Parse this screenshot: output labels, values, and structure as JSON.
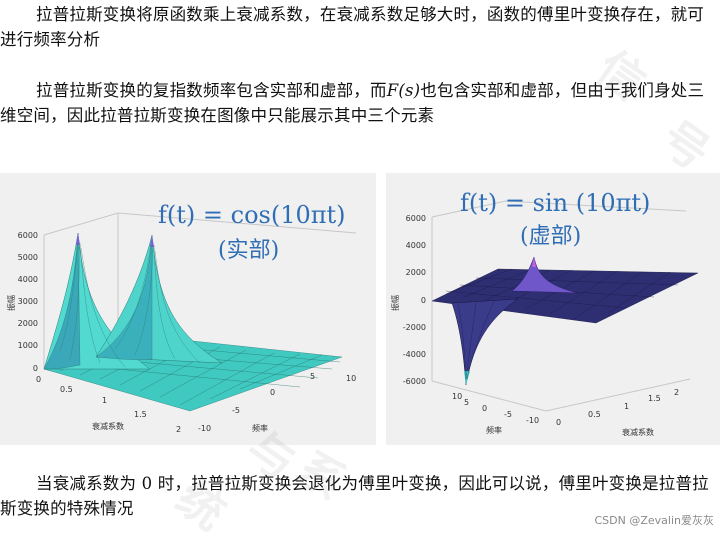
{
  "paragraphs": {
    "p1": "拉普拉斯变换将原函数乘上衰减系数，在衰减系数足够大时，函数的傅里叶变换存在，就可进行频率分析",
    "p2_before": "拉普拉斯变换的复指数频率包含实部和虚部，而",
    "p2_symbol": "F(s)",
    "p2_after": "也包含实部和虚部，但由于我们身处三维空间，因此拉普拉斯变换在图像中只能展示其中三个元素",
    "p3": "当衰减系数为 0 时，拉普拉斯变换会退化为傅里叶变换，因此可以说，傅里叶变换是拉普拉斯变换的特殊情况"
  },
  "watermarks": [
    "信",
    "号",
    "与",
    "系",
    "统"
  ],
  "footer": "CSDN @Zevalin爱灰灰",
  "chart_data": [
    {
      "type": "surface",
      "formula": "f(t) = cos(10πt)",
      "formula_sub": "(实部)",
      "zlabel": "振幅",
      "xlabel": "衰减系数",
      "ylabel": "频率",
      "z_ticks": [
        "0",
        "1000",
        "2000",
        "3000",
        "4000",
        "5000",
        "6000"
      ],
      "x_ticks": [
        "0",
        "0.5",
        "1",
        "1.5",
        "2"
      ],
      "y_ticks": [
        "-10",
        "-5",
        "0",
        "5",
        "10"
      ],
      "zlim": [
        0,
        6000
      ],
      "peaks": [
        {
          "frequency": -5,
          "amplitude": 5700
        },
        {
          "frequency": 5,
          "amplitude": 5700
        }
      ],
      "color": "#3fd6cc"
    },
    {
      "type": "surface",
      "formula": "f(t) = sin (10πt)",
      "formula_sub": "(虚部)",
      "zlabel": "振幅",
      "xlabel": "衰减系数",
      "ylabel": "频率",
      "z_ticks": [
        "-6000",
        "-4000",
        "-2000",
        "0",
        "2000",
        "4000",
        "6000"
      ],
      "x_ticks": [
        "0",
        "0.5",
        "1",
        "1.5",
        "2"
      ],
      "y_ticks": [
        "10",
        "5",
        "0",
        "-5",
        "-10"
      ],
      "zlim": [
        -6000,
        6000
      ],
      "peaks": [
        {
          "frequency": -5,
          "amplitude": 3000
        },
        {
          "frequency": 5,
          "amplitude": -5200
        }
      ],
      "color": "#2b2d6e"
    }
  ]
}
